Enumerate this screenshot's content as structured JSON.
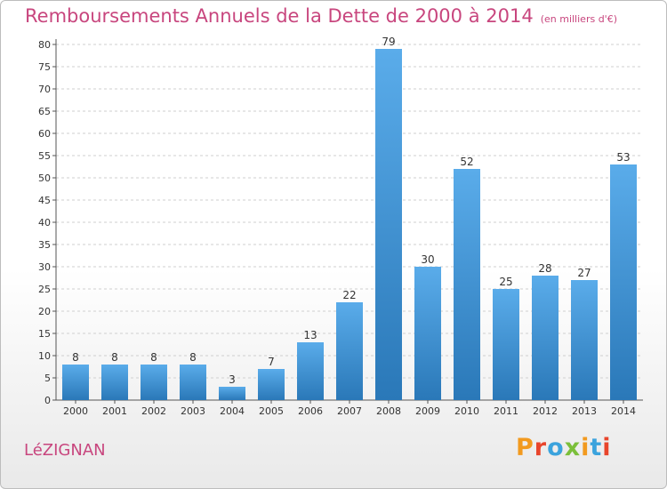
{
  "title": "Remboursements Annuels de la Dette de 2000 à 2014",
  "subtitle": "(en milliers d'€)",
  "commune": "LéZIGNAN",
  "brand": "Proxiti",
  "colors": {
    "title": "#c8467e",
    "bar_light": "#5aacea",
    "bar_dark": "#2a78b8",
    "grid": "#cfcfcf",
    "axis": "#555555",
    "label": "#333333"
  },
  "chart_data": {
    "type": "bar",
    "title": "Remboursements Annuels de la Dette de 2000 à 2014",
    "subtitle": "(en milliers d'€)",
    "categories": [
      "2000",
      "2001",
      "2002",
      "2003",
      "2004",
      "2005",
      "2006",
      "2007",
      "2008",
      "2009",
      "2010",
      "2011",
      "2012",
      "2013",
      "2014"
    ],
    "values": [
      8,
      8,
      8,
      8,
      3,
      7,
      13,
      22,
      79,
      30,
      52,
      25,
      28,
      27,
      53
    ],
    "ylim": [
      0,
      80
    ],
    "yticks": [
      0,
      5,
      10,
      15,
      20,
      25,
      30,
      35,
      40,
      45,
      50,
      55,
      60,
      65,
      70,
      75,
      80
    ],
    "grid": true,
    "data_labels": true
  }
}
